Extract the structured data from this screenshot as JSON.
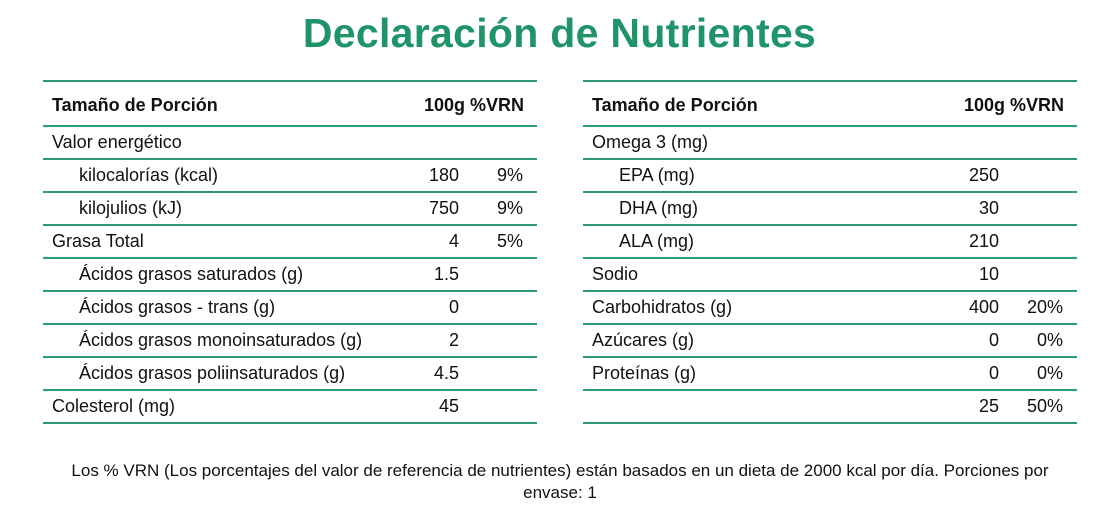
{
  "title": "Declaración de Nutrientes",
  "colors": {
    "accent": "#1f9468",
    "rule": "#2e9c73",
    "text": "#111111"
  },
  "left_table": {
    "header": {
      "label": "Tamaño de Porción",
      "value": "100g %VRN"
    },
    "rows": [
      {
        "label": "Valor energético",
        "value": "",
        "pct": "",
        "indent": false
      },
      {
        "label": "kilocalorías (kcal)",
        "value": "180",
        "pct": "9%",
        "indent": true
      },
      {
        "label": "kilojulios (kJ)",
        "value": "750",
        "pct": "9%",
        "indent": true
      },
      {
        "label": "Grasa Total",
        "value": "4",
        "pct": "5%",
        "indent": false
      },
      {
        "label": "Ácidos grasos saturados (g)",
        "value": "1.5",
        "pct": "",
        "indent": true
      },
      {
        "label": "Ácidos grasos - trans (g)",
        "value": "0",
        "pct": "",
        "indent": true
      },
      {
        "label": "Ácidos grasos monoinsaturados (g)",
        "value": "2",
        "pct": "",
        "indent": true
      },
      {
        "label": "Ácidos grasos poliinsaturados (g)",
        "value": "4.5",
        "pct": "",
        "indent": true
      },
      {
        "label": "Colesterol (mg)",
        "value": "45",
        "pct": "",
        "indent": false
      }
    ]
  },
  "right_table": {
    "header": {
      "label": "Tamaño de Porción",
      "value": "100g %VRN"
    },
    "rows": [
      {
        "label": "Omega 3 (mg)",
        "value": "",
        "pct": "",
        "indent": false
      },
      {
        "label": "EPA (mg)",
        "value": "250",
        "pct": "",
        "indent": true
      },
      {
        "label": "DHA (mg)",
        "value": "30",
        "pct": "",
        "indent": true
      },
      {
        "label": "ALA (mg)",
        "value": "210",
        "pct": "",
        "indent": true
      },
      {
        "label": "Sodio",
        "value": "10",
        "pct": "",
        "indent": false
      },
      {
        "label": "Carbohidratos (g)",
        "value": "400",
        "pct": "20%",
        "indent": false
      },
      {
        "label": "Azúcares (g)",
        "value": "0",
        "pct": "0%",
        "indent": false
      },
      {
        "label": "Proteínas (g)",
        "value": "0",
        "pct": "0%",
        "indent": false
      },
      {
        "label": "",
        "value": "25",
        "pct": "50%",
        "indent": false
      }
    ]
  },
  "footnote": "Los % VRN (Los porcentajes del valor de referencia de nutrientes) están basados en un dieta de 2000 kcal por día. Porciones por envase: 1"
}
